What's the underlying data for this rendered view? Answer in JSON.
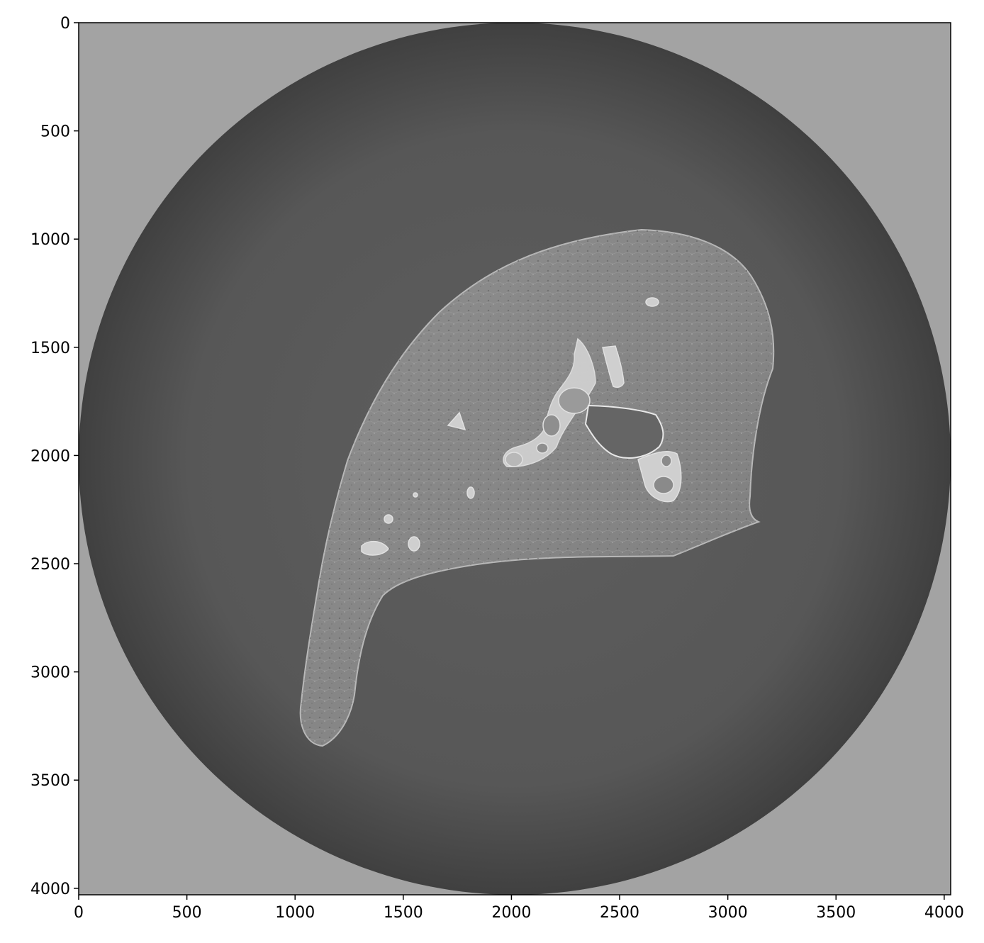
{
  "image": {
    "description_type": "grayscale CT slice",
    "background_color": "#a3a3a3",
    "disk_color": "#5a5a5a",
    "tissue_color": "#8a8a8a",
    "bright_color": "#cfcfcf"
  },
  "axes": {
    "x_range": [
      0,
      4030
    ],
    "y_range": [
      0,
      4030
    ],
    "x_ticks": [
      {
        "value": 0,
        "label": "0"
      },
      {
        "value": 500,
        "label": "500"
      },
      {
        "value": 1000,
        "label": "1000"
      },
      {
        "value": 1500,
        "label": "1500"
      },
      {
        "value": 2000,
        "label": "2000"
      },
      {
        "value": 2500,
        "label": "2500"
      },
      {
        "value": 3000,
        "label": "3000"
      },
      {
        "value": 3500,
        "label": "3500"
      },
      {
        "value": 4000,
        "label": "4000"
      }
    ],
    "y_ticks": [
      {
        "value": 0,
        "label": "0"
      },
      {
        "value": 500,
        "label": "500"
      },
      {
        "value": 1000,
        "label": "1000"
      },
      {
        "value": 1500,
        "label": "1500"
      },
      {
        "value": 2000,
        "label": "2000"
      },
      {
        "value": 2500,
        "label": "2500"
      },
      {
        "value": 3000,
        "label": "3000"
      },
      {
        "value": 3500,
        "label": "3500"
      },
      {
        "value": 4000,
        "label": "4000"
      }
    ]
  }
}
